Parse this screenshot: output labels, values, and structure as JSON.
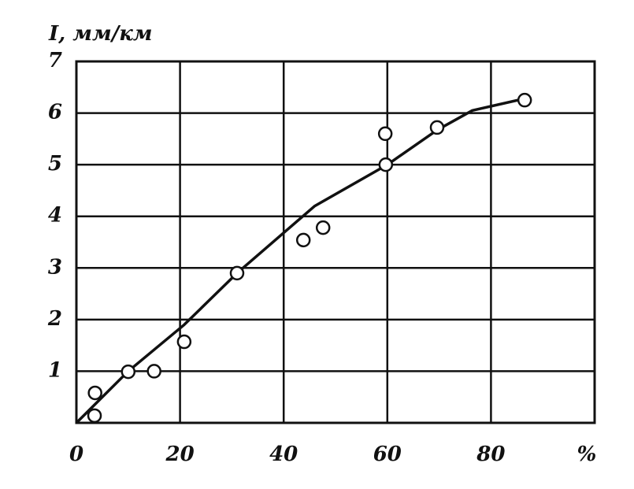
{
  "chart_data": {
    "type": "scatter",
    "y_label": "I, мм/км",
    "x_label": "%",
    "xlim": [
      0,
      100
    ],
    "xticks": [
      0,
      20,
      40,
      60,
      80
    ],
    "ylim": [
      0,
      7
    ],
    "yticks": [
      1,
      2,
      3,
      4,
      5,
      6,
      7
    ],
    "grid": true,
    "color": "#111111",
    "series": [
      {
        "mode": "markers",
        "x": [
          3.5,
          3.6,
          10,
          15,
          20.8,
          31,
          43.8,
          47.6,
          59.6,
          59.7,
          69.6,
          86.5
        ],
        "values": [
          0.14,
          0.58,
          0.99,
          1.0,
          1.57,
          2.9,
          3.54,
          3.78,
          5.6,
          5.0,
          5.72,
          6.25
        ]
      },
      {
        "mode": "line",
        "x": [
          0,
          5,
          10,
          20.8,
          31,
          46,
          60,
          69.6,
          76.4,
          86.5
        ],
        "values": [
          0,
          0.5,
          1.0,
          1.9,
          2.9,
          4.2,
          5.0,
          5.67,
          6.05,
          6.28
        ]
      }
    ]
  }
}
